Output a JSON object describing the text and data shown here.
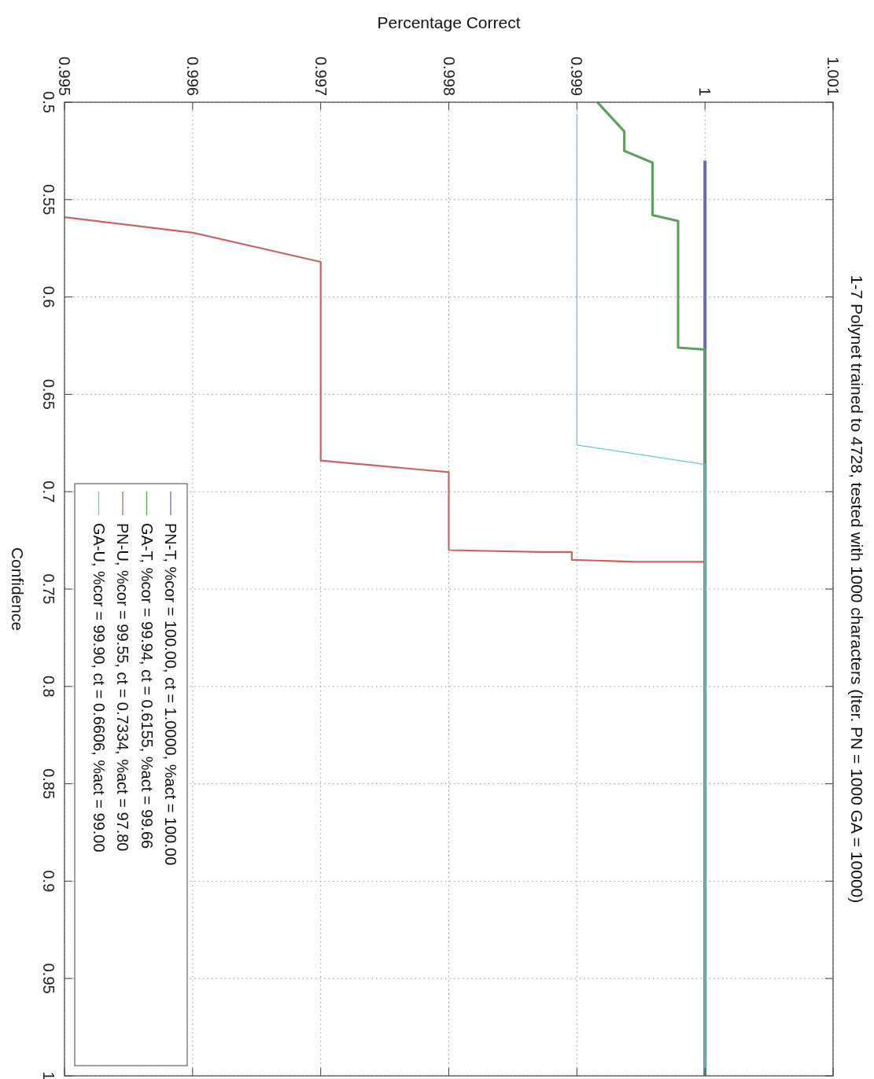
{
  "chart_data": {
    "type": "line",
    "title": "1-7 Polynet trained to 4728, tested with 1000 characters (Iter. PN = 1000 GA = 10000)",
    "xlabel": "Percentage Correct",
    "ylabel": "Confidence",
    "xlim": [
      0.995,
      1.001
    ],
    "xticks": [
      0.995,
      0.996,
      0.997,
      0.998,
      0.999,
      1,
      1.001
    ],
    "ylim": [
      1,
      0.5
    ],
    "yticks": [
      0.5,
      0.55,
      0.6,
      0.65,
      0.7,
      0.75,
      0.8,
      0.85,
      0.9,
      0.95,
      1
    ],
    "grid": true,
    "legend": "bottom left",
    "marker": "none",
    "line_style": "solid",
    "series": [
      {
        "name": "PN-T, %cor = 100.00, ct = 1.0000, %act = 100.00",
        "color": "#6a6ab4",
        "x": [
          1,
          1
        ],
        "values": [
          0.53,
          1
        ]
      },
      {
        "name": "GA-T, %cor = 99.94, ct = 0.6155, %act = 99.66",
        "color": "#5fa05f",
        "x": [
          0.99916,
          0.99937,
          0.99937,
          0.99959,
          0.99959,
          0.99979,
          0.99979,
          1,
          1
        ],
        "values": [
          0.5,
          0.515,
          0.525,
          0.531,
          0.558,
          0.561,
          0.626,
          0.627,
          1
        ]
      },
      {
        "name": "PN-U, %cor = 99.55, ct = 0.7334, %act = 97.80",
        "color": "#c86464",
        "x": [
          0.995,
          0.996,
          0.997,
          0.997,
          0.998,
          0.998,
          0.99872,
          0.99896,
          0.99896,
          0.99945,
          1
        ],
        "values": [
          0.559,
          0.567,
          0.582,
          0.684,
          0.69,
          0.73,
          0.731,
          0.731,
          0.735,
          0.736,
          0.736
        ]
      },
      {
        "name": "GA-U, %cor = 99.90, ct = 0.6606, %act = 99.00",
        "color": "#6cc8d4",
        "x": [
          0.999,
          0.999,
          1,
          1
        ],
        "values": [
          0.506,
          0.676,
          0.686,
          1
        ]
      }
    ]
  }
}
